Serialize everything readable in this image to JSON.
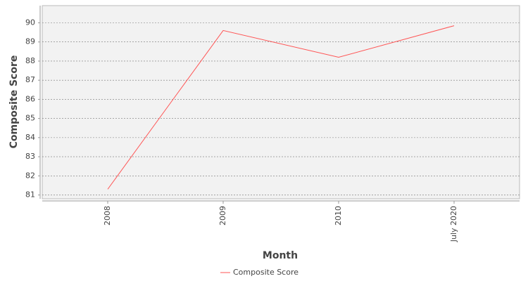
{
  "chart_data": {
    "type": "line",
    "categories": [
      "2008",
      "2009",
      "2010",
      "July 2020"
    ],
    "series": [
      {
        "name": "Composite Score",
        "color": "#ff5555",
        "values": [
          81.3,
          89.6,
          88.2,
          89.85
        ]
      }
    ],
    "xlabel": "Month",
    "ylabel": "Composite Score",
    "ylim": [
      80.8,
      90.9
    ],
    "yticks": [
      81,
      82,
      83,
      84,
      85,
      86,
      87,
      88,
      89,
      90
    ],
    "grid": true,
    "legend": "bottom"
  }
}
